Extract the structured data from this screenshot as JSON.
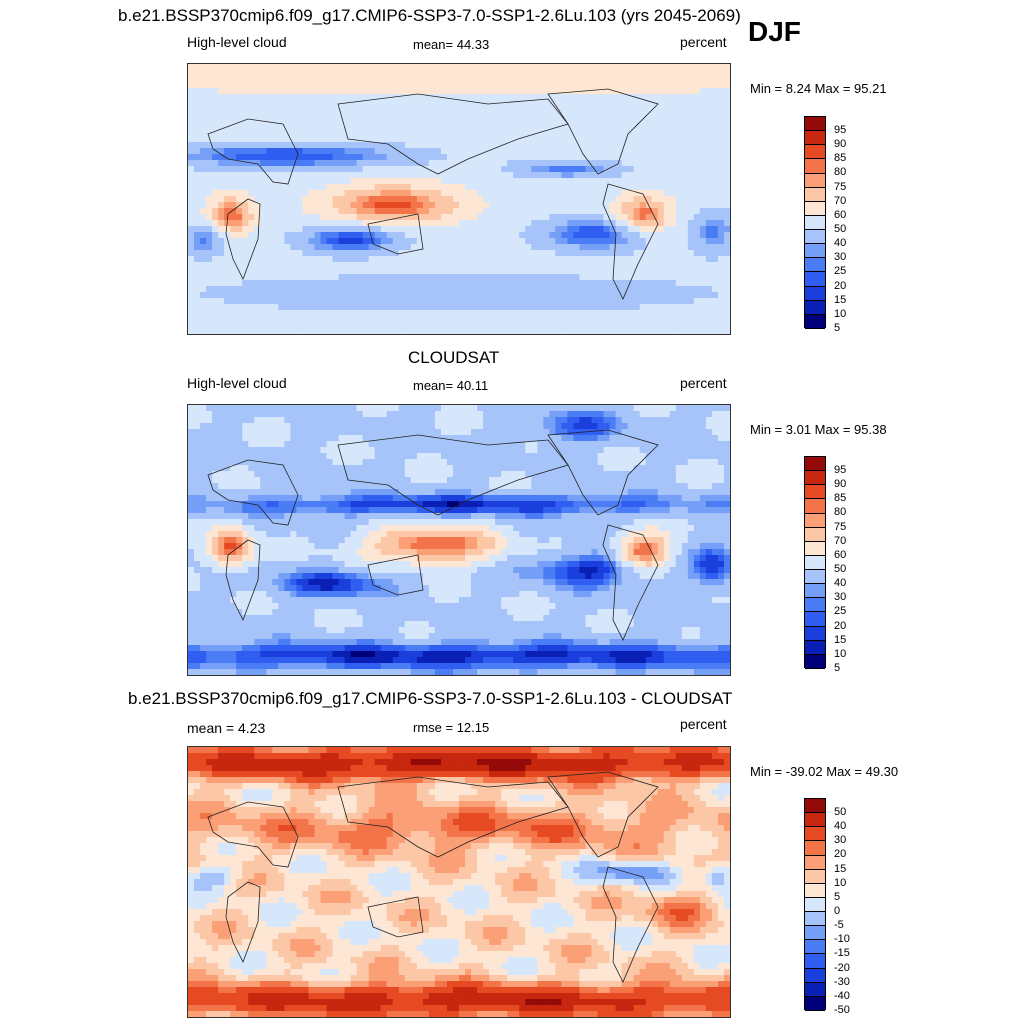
{
  "season": "DJF",
  "panels": [
    {
      "title": "b.e21.BSSP370cmip6.f09_g17.CMIP6-SSP3-7.0-SSP1-2.6Lu.103 (yrs 2045-2069)",
      "left_label": "High-level cloud",
      "center_label": "mean=  44.33",
      "units": "percent",
      "minmax": "Min =   8.24 Max =  95.21",
      "colorbar_labels": [
        "95",
        "90",
        "85",
        "80",
        "75",
        "70",
        "60",
        "50",
        "40",
        "30",
        "25",
        "20",
        "15",
        "10",
        "5"
      ],
      "kind": "model"
    },
    {
      "title": "CLOUDSAT",
      "left_label": "High-level cloud",
      "center_label": "mean=  40.11",
      "units": "percent",
      "minmax": "Min =   3.01 Max =  95.38",
      "colorbar_labels": [
        "95",
        "90",
        "85",
        "80",
        "75",
        "70",
        "60",
        "50",
        "40",
        "30",
        "25",
        "20",
        "15",
        "10",
        "5"
      ],
      "kind": "obs"
    },
    {
      "title": "b.e21.BSSP370cmip6.f09_g17.CMIP6-SSP3-7.0-SSP1-2.6Lu.103 - CLOUDSAT",
      "left_label": "mean =   4.23",
      "center_label": "rmse =  12.15",
      "units": "percent",
      "minmax": "Min = -39.02 Max =  49.30",
      "colorbar_labels": [
        "50",
        "40",
        "30",
        "20",
        "15",
        "10",
        "5",
        "0",
        "-5",
        "-10",
        "-15",
        "-20",
        "-30",
        "-40",
        "-50"
      ],
      "kind": "diff"
    }
  ],
  "palette": [
    "#00007a",
    "#0a1fb4",
    "#1b3fdc",
    "#2f5ef0",
    "#4a7cf5",
    "#76a0f7",
    "#a6c4f9",
    "#d6e6fb",
    "#fde6d4",
    "#fcc7a6",
    "#fb9f76",
    "#f4744a",
    "#e64a22",
    "#c7260f",
    "#930a08"
  ],
  "chart_data": [
    {
      "type": "heatmap",
      "title": "b.e21.BSSP370cmip6.f09_g17.CMIP6-SSP3-7.0-SSP1-2.6Lu.103 (yrs 2045-2069)",
      "variable": "High-level cloud",
      "units": "percent",
      "season": "DJF",
      "mean": 44.33,
      "min": 8.24,
      "max": 95.21,
      "levels": [
        5,
        10,
        15,
        20,
        25,
        30,
        40,
        50,
        60,
        70,
        75,
        80,
        85,
        90,
        95
      ]
    },
    {
      "type": "heatmap",
      "title": "CLOUDSAT",
      "variable": "High-level cloud",
      "units": "percent",
      "mean": 40.11,
      "min": 3.01,
      "max": 95.38,
      "levels": [
        5,
        10,
        15,
        20,
        25,
        30,
        40,
        50,
        60,
        70,
        75,
        80,
        85,
        90,
        95
      ]
    },
    {
      "type": "heatmap",
      "title": "b.e21.BSSP370cmip6.f09_g17.CMIP6-SSP3-7.0-SSP1-2.6Lu.103 - CLOUDSAT",
      "units": "percent",
      "mean": 4.23,
      "rmse": 12.15,
      "min": -39.02,
      "max": 49.3,
      "levels": [
        -50,
        -40,
        -30,
        -20,
        -15,
        -10,
        -5,
        0,
        5,
        10,
        15,
        20,
        30,
        40,
        50
      ]
    }
  ]
}
